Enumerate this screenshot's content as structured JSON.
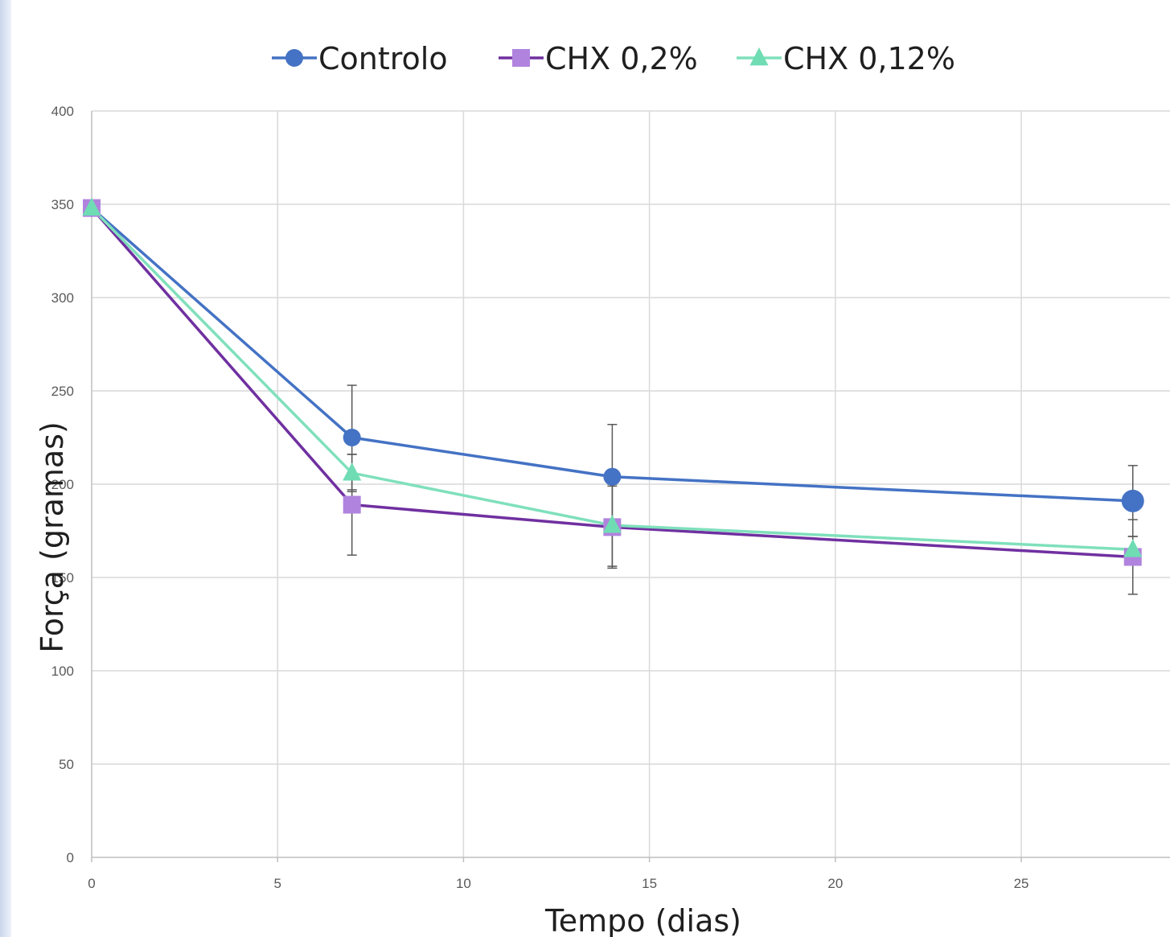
{
  "chart_data": {
    "type": "line",
    "xlabel": "Tempo (dias)",
    "ylabel": "Força (gramas)",
    "xlim": [
      0,
      29
    ],
    "ylim": [
      0,
      400
    ],
    "xticks": [
      0,
      5,
      10,
      15,
      20,
      25
    ],
    "yticks": [
      0,
      50,
      100,
      150,
      200,
      250,
      300,
      350,
      400
    ],
    "grid": true,
    "legend_position": "top",
    "series": [
      {
        "name": "Controlo",
        "color": "#4472c4",
        "marker": "circle",
        "x": [
          0,
          7,
          14,
          28
        ],
        "y": [
          348,
          225,
          204,
          191
        ],
        "error": [
          0,
          28,
          28,
          19
        ]
      },
      {
        "name": "CHX 0,2%",
        "color": "#7030a0",
        "marker_color": "#b083de",
        "marker": "square",
        "x": [
          0,
          7,
          14,
          28
        ],
        "y": [
          348,
          189,
          177,
          161
        ],
        "error": [
          0,
          27,
          22,
          20
        ]
      },
      {
        "name": "CHX 0,12%",
        "color": "#7fe0bc",
        "marker_color": "#6fdcb4",
        "marker": "triangle",
        "x": [
          0,
          7,
          14,
          28
        ],
        "y": [
          348,
          206,
          178,
          165
        ],
        "error": [
          0,
          10,
          22,
          7
        ]
      }
    ]
  }
}
